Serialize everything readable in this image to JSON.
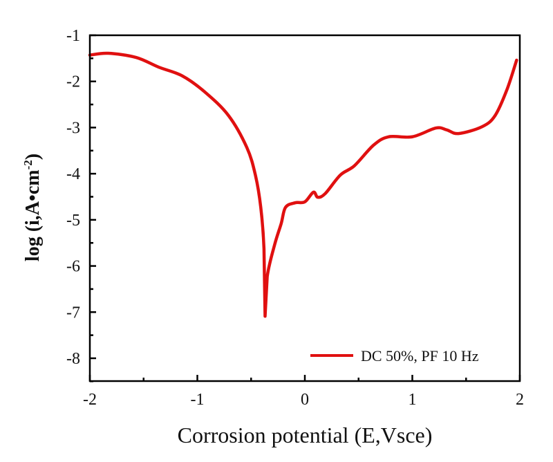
{
  "chart_data": {
    "type": "line",
    "title": "",
    "xlabel": "Corrosion potential (E,Vsce)",
    "ylabel_main": "log (i,A•cm",
    "ylabel_sup": "-2",
    "ylabel_close": ")",
    "xlim": [
      -2,
      2
    ],
    "ylim": [
      -8.5,
      -1
    ],
    "x_ticks": [
      -2,
      -1,
      0,
      1,
      2
    ],
    "x_tick_labels": [
      "-2",
      "-1",
      "0",
      "1",
      "2"
    ],
    "y_ticks": [
      -1,
      -2,
      -3,
      -4,
      -5,
      -6,
      -7,
      -8
    ],
    "y_tick_labels": [
      "-1",
      "-2",
      "-3",
      "-4",
      "-5",
      "-6",
      "-7",
      "-8"
    ],
    "grid": false,
    "legend_position": "bottom-right",
    "series": [
      {
        "name": "DC 50%, PF 10 Hz",
        "color": "#e01010",
        "x": [
          -2.0,
          -1.83,
          -1.57,
          -1.36,
          -1.14,
          -0.93,
          -0.71,
          -0.54,
          -0.46,
          -0.41,
          -0.38,
          -0.37,
          -0.35,
          -0.28,
          -0.22,
          -0.18,
          -0.09,
          0.0,
          0.08,
          0.12,
          0.19,
          0.33,
          0.46,
          0.64,
          0.78,
          1.0,
          1.22,
          1.32,
          1.43,
          1.65,
          1.77,
          1.88,
          1.97
        ],
        "y": [
          -1.43,
          -1.39,
          -1.48,
          -1.69,
          -1.88,
          -2.23,
          -2.74,
          -3.43,
          -4.03,
          -4.73,
          -5.63,
          -7.09,
          -6.23,
          -5.53,
          -5.08,
          -4.73,
          -4.63,
          -4.61,
          -4.4,
          -4.51,
          -4.43,
          -4.03,
          -3.83,
          -3.38,
          -3.2,
          -3.2,
          -3.01,
          -3.05,
          -3.13,
          -2.98,
          -2.74,
          -2.18,
          -1.54
        ]
      }
    ]
  }
}
